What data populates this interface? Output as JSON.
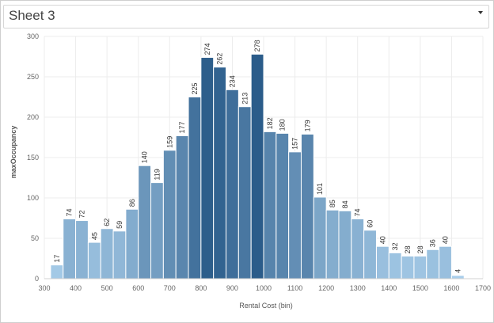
{
  "sheet": {
    "title": "Sheet 3"
  },
  "colors": {
    "bar_light": "#abd0ec",
    "bar_dark": "#2b5c8a",
    "grid": "#ececec",
    "axis_text": "#666666",
    "label_text": "#333333"
  },
  "chart_data": {
    "type": "bar",
    "title": "",
    "xlabel": "Rental Cost (bin)",
    "ylabel": "maxOccupancy",
    "ylim": [
      0,
      300
    ],
    "xlim": [
      300,
      1700
    ],
    "bin_width": 40,
    "y_ticks": [
      0,
      50,
      100,
      150,
      200,
      250,
      300
    ],
    "x_ticks": [
      300,
      400,
      500,
      600,
      700,
      800,
      900,
      1000,
      1100,
      1200,
      1300,
      1400,
      1500,
      1600,
      1700
    ],
    "grid": true,
    "legend": "none",
    "bins": [
      320,
      360,
      400,
      440,
      480,
      520,
      560,
      600,
      640,
      680,
      720,
      760,
      800,
      840,
      880,
      920,
      960,
      1000,
      1040,
      1080,
      1120,
      1160,
      1200,
      1240,
      1280,
      1320,
      1360,
      1400,
      1440,
      1480,
      1520,
      1560,
      1600
    ],
    "values": [
      17,
      74,
      72,
      45,
      62,
      59,
      86,
      140,
      119,
      159,
      177,
      225,
      274,
      262,
      234,
      213,
      278,
      182,
      180,
      157,
      179,
      101,
      85,
      84,
      74,
      60,
      40,
      32,
      28,
      28,
      36,
      40,
      4
    ],
    "value_labels": [
      "17",
      "74",
      "72",
      "45",
      "62",
      "59",
      "86",
      "140",
      "119",
      "159",
      "177",
      "225",
      "274",
      "262",
      "234",
      "213",
      "278",
      "182",
      "180",
      "157",
      "179",
      "101",
      "85",
      "84",
      "74",
      "60",
      "40",
      "32",
      "28",
      "28",
      "36",
      "40",
      "4"
    ]
  }
}
